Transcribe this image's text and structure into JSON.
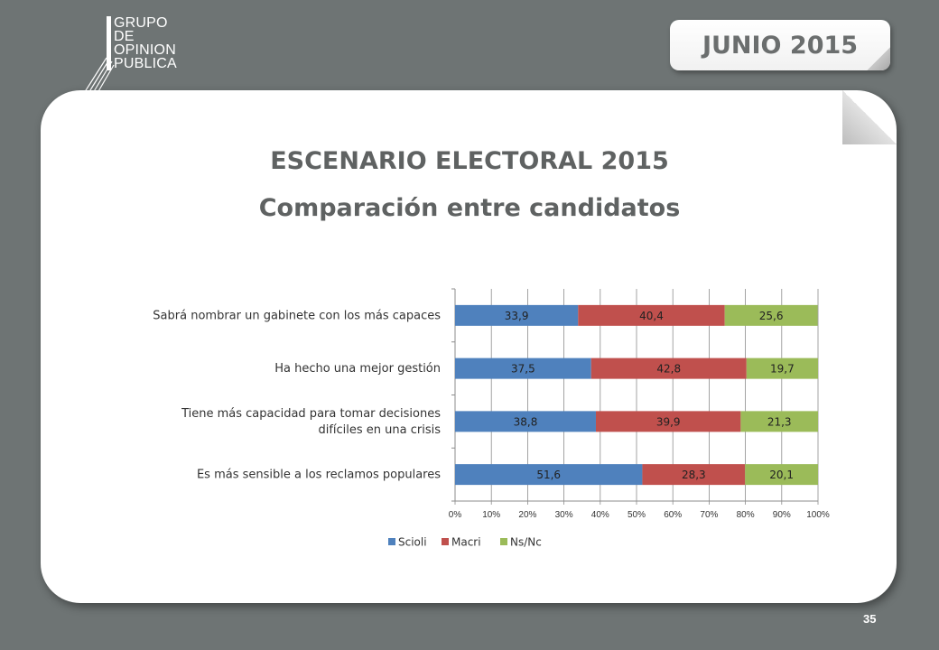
{
  "logo": {
    "lines": [
      "GRUPO",
      "DE",
      "OPINION",
      "PUBLICA"
    ]
  },
  "header": {
    "date_label": "JUNIO 2015"
  },
  "titles": {
    "main": "ESCENARIO ELECTORAL 2015",
    "sub": "Comparación entre candidatos"
  },
  "page_number": "35",
  "colors": {
    "background": "#6e7474",
    "scioli": "#4f81bd",
    "macri": "#c0504d",
    "nsnc": "#9bbb59"
  },
  "chart_data": {
    "type": "bar",
    "orientation": "horizontal",
    "stacked": "100%",
    "categories": [
      "Sabrá nombrar un gabinete con los más capaces",
      "Ha hecho una mejor gestión",
      "Tiene más capacidad para tomar decisiones difíciles en una crisis",
      "Es más sensible a los reclamos populares"
    ],
    "series": [
      {
        "name": "Scioli",
        "color": "#4f81bd",
        "values": [
          33.9,
          37.5,
          38.8,
          51.6
        ],
        "labels": [
          "33,9",
          "37,5",
          "38,8",
          "51,6"
        ]
      },
      {
        "name": "Macri",
        "color": "#c0504d",
        "values": [
          40.4,
          42.8,
          39.9,
          28.3
        ],
        "labels": [
          "40,4",
          "42,8",
          "39,9",
          "28,3"
        ]
      },
      {
        "name": "Ns/Nc",
        "color": "#9bbb59",
        "values": [
          25.6,
          19.7,
          21.3,
          20.1
        ],
        "labels": [
          "25,6",
          "19,7",
          "21,3",
          "20,1"
        ]
      }
    ],
    "xticks": [
      "0%",
      "10%",
      "20%",
      "30%",
      "40%",
      "50%",
      "60%",
      "70%",
      "80%",
      "90%",
      "100%"
    ],
    "xlim": [
      0,
      100
    ],
    "grid": true,
    "legend": "bottom"
  }
}
